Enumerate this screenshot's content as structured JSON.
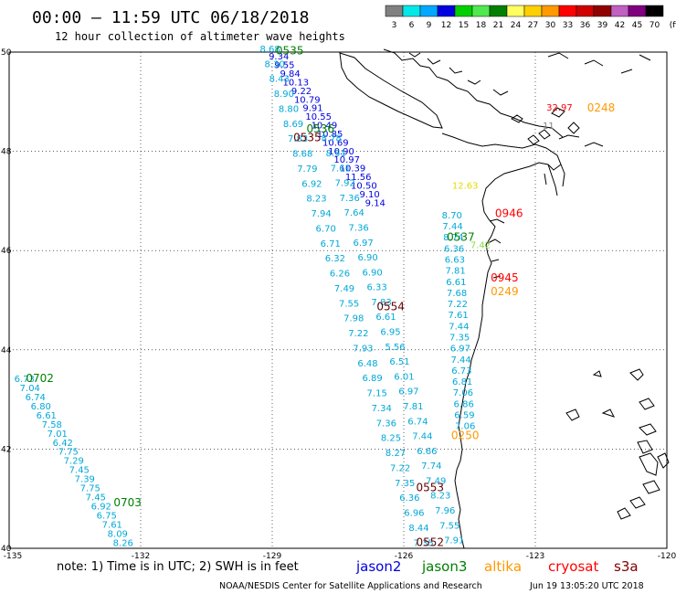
{
  "header": {
    "title": "00:00 – 11:59 UTC 06/18/2018",
    "subtitle": "12 hour collection of altimeter wave heights"
  },
  "colorbar": {
    "colors": [
      "#808080",
      "#00e8e8",
      "#00a8ff",
      "#0000e0",
      "#00d000",
      "#50e850",
      "#008000",
      "#ffff60",
      "#ffd000",
      "#ff9900",
      "#ff0000",
      "#d00000",
      "#900000",
      "#c060c0",
      "#800080",
      "#000000"
    ],
    "labels": [
      "3",
      "6",
      "9",
      "12",
      "15",
      "18",
      "21",
      "24",
      "27",
      "30",
      "33",
      "36",
      "39",
      "42",
      "45",
      "70",
      "(ft)"
    ]
  },
  "axes": {
    "lon_labels": [
      "-135",
      "-132",
      "-129",
      "-126",
      "-123",
      "-120"
    ],
    "lat_labels": [
      "50",
      "48",
      "46",
      "44",
      "42",
      "40"
    ],
    "lon_range": [
      -135,
      -120
    ],
    "lat_range": [
      40,
      50
    ]
  },
  "time_labels": [
    {
      "text": "0535",
      "lon": -128.6,
      "lat": 49.95,
      "color": "#008000"
    },
    {
      "text": "0536",
      "lon": -127.9,
      "lat": 48.38,
      "color": "#008000"
    },
    {
      "text": "0535",
      "lon": -128.2,
      "lat": 48.2,
      "color": "#660000"
    },
    {
      "text": "0248",
      "lon": -121.5,
      "lat": 48.8,
      "color": "#ff9900"
    },
    {
      "text": "0946",
      "lon": -123.6,
      "lat": 46.68,
      "color": "#ff0000"
    },
    {
      "text": "0537",
      "lon": -124.7,
      "lat": 46.2,
      "color": "#008000"
    },
    {
      "text": "0945",
      "lon": -123.7,
      "lat": 45.38,
      "color": "#ff0000"
    },
    {
      "text": "0249",
      "lon": -123.7,
      "lat": 45.1,
      "color": "#ff9900"
    },
    {
      "text": "0554",
      "lon": -126.3,
      "lat": 44.8,
      "color": "#660000"
    },
    {
      "text": "0702",
      "lon": -134.3,
      "lat": 43.35,
      "color": "#008000"
    },
    {
      "text": "0250",
      "lon": -124.6,
      "lat": 42.2,
      "color": "#ff9900"
    },
    {
      "text": "0553",
      "lon": -125.4,
      "lat": 41.15,
      "color": "#660000"
    },
    {
      "text": "0703",
      "lon": -132.3,
      "lat": 40.85,
      "color": "#008000"
    },
    {
      "text": "0552",
      "lon": -125.4,
      "lat": 40.05,
      "color": "#660000"
    }
  ],
  "tracks": [
    {
      "satellite": "jason2",
      "color": "#0000e0",
      "start": [
        -128.85,
        49.85
      ],
      "end": [
        -126.65,
        46.9
      ],
      "values": [
        "9.34",
        "9.55",
        "9.84",
        "10.13",
        "9.22",
        "10.79",
        "9.91",
        "10.55",
        "10.49",
        "10.85",
        "10.69",
        "10.90",
        "10.97",
        "10.39",
        "11.56",
        "10.50",
        "9.10",
        "9.14"
      ]
    },
    {
      "satellite": "jason3",
      "color": "#00a8d8",
      "start": [
        -129.05,
        50.0
      ],
      "end": [
        -125.55,
        40.05
      ],
      "values": [
        "8.68",
        "8.30",
        "8.43",
        "8.90",
        "8.80",
        "8.69",
        "7.83",
        "8.68",
        "7.79",
        "6.92",
        "8.23",
        "7.94",
        "6.70",
        "6.71",
        "6.32",
        "6.26",
        "7.49",
        "7.55",
        "7.98",
        "7.22",
        "7.93",
        "6.48",
        "6.89",
        "7.15",
        "7.34",
        "7.36",
        "8.25",
        "8.27",
        "7.22",
        "7.35",
        "6.36",
        "6.96",
        "8.44",
        "7.35"
      ]
    },
    {
      "satellite": "jason3",
      "color": "#00a8d8",
      "start": [
        -127.65,
        48.2
      ],
      "end": [
        -124.85,
        40.1
      ],
      "values": [
        "8.78",
        "8.51",
        "7.61",
        "7.92",
        "7.36",
        "7.64",
        "7.36",
        "6.97",
        "6.90",
        "6.90",
        "6.33",
        "7.83",
        "6.61",
        "6.95",
        "5.56",
        "6.51",
        "6.01",
        "6.97",
        "7.81",
        "6.74",
        "7.44",
        "6.66",
        "7.74",
        "7.49",
        "8.23",
        "7.96",
        "7.55",
        "7.91"
      ]
    },
    {
      "satellite": "jason3",
      "color": "#00a8d8",
      "start": [
        -124.9,
        46.65
      ],
      "end": [
        -124.6,
        42.4
      ],
      "values": [
        "8.70",
        "7.44",
        "8.74",
        "6.36",
        "6.63",
        "7.81",
        "6.61",
        "7.68",
        "7.22",
        "7.61",
        "7.44",
        "7.35",
        "6.97",
        "7.44",
        "6.73",
        "6.81",
        "7.06",
        "6.86",
        "6.59",
        "7.06"
      ]
    },
    {
      "satellite": "jason3",
      "color": "#00a8d8",
      "start": [
        -134.65,
        43.35
      ],
      "end": [
        -132.4,
        40.05
      ],
      "values": [
        "6.73",
        "7.04",
        "6.74",
        "6.80",
        "6.61",
        "7.58",
        "7.01",
        "6.42",
        "7.75",
        "7.29",
        "7.45",
        "7.39",
        "7.75",
        "7.45",
        "6.92",
        "6.75",
        "7.61",
        "8.09",
        "8.26"
      ]
    },
    {
      "satellite": "altika",
      "color": "#e8d800",
      "start": [
        -124.6,
        47.25
      ],
      "end": [
        -124.6,
        47.25
      ],
      "values": [
        "12.63"
      ]
    },
    {
      "satellite": "altika",
      "color": "#88dd44",
      "start": [
        -124.25,
        46.05
      ],
      "end": [
        -124.25,
        46.05
      ],
      "values": [
        "7.42"
      ]
    },
    {
      "satellite": "cryosat",
      "color": "#ff0000",
      "start": [
        -122.45,
        48.82
      ],
      "end": [
        -122.45,
        48.82
      ],
      "values": [
        "32.97"
      ]
    },
    {
      "satellite": "other",
      "color": "#808080",
      "start": [
        -122.7,
        48.45
      ],
      "end": [
        -122.7,
        48.45
      ],
      "values": [
        "11"
      ]
    }
  ],
  "note": "note:  1) Time is in UTC;  2) SWH is in feet",
  "legend": [
    {
      "label": "jason2",
      "color": "#0000e0"
    },
    {
      "label": "jason3",
      "color": "#008000"
    },
    {
      "label": "altika",
      "color": "#ff9900"
    },
    {
      "label": "cryosat",
      "color": "#ff0000"
    },
    {
      "label": "s3a",
      "color": "#800000"
    }
  ],
  "footer": {
    "credit": "NOAA/NESDIS Center for Satellite Applications and Research",
    "timestamp": "Jun 19 13:05:20 UTC 2018"
  }
}
